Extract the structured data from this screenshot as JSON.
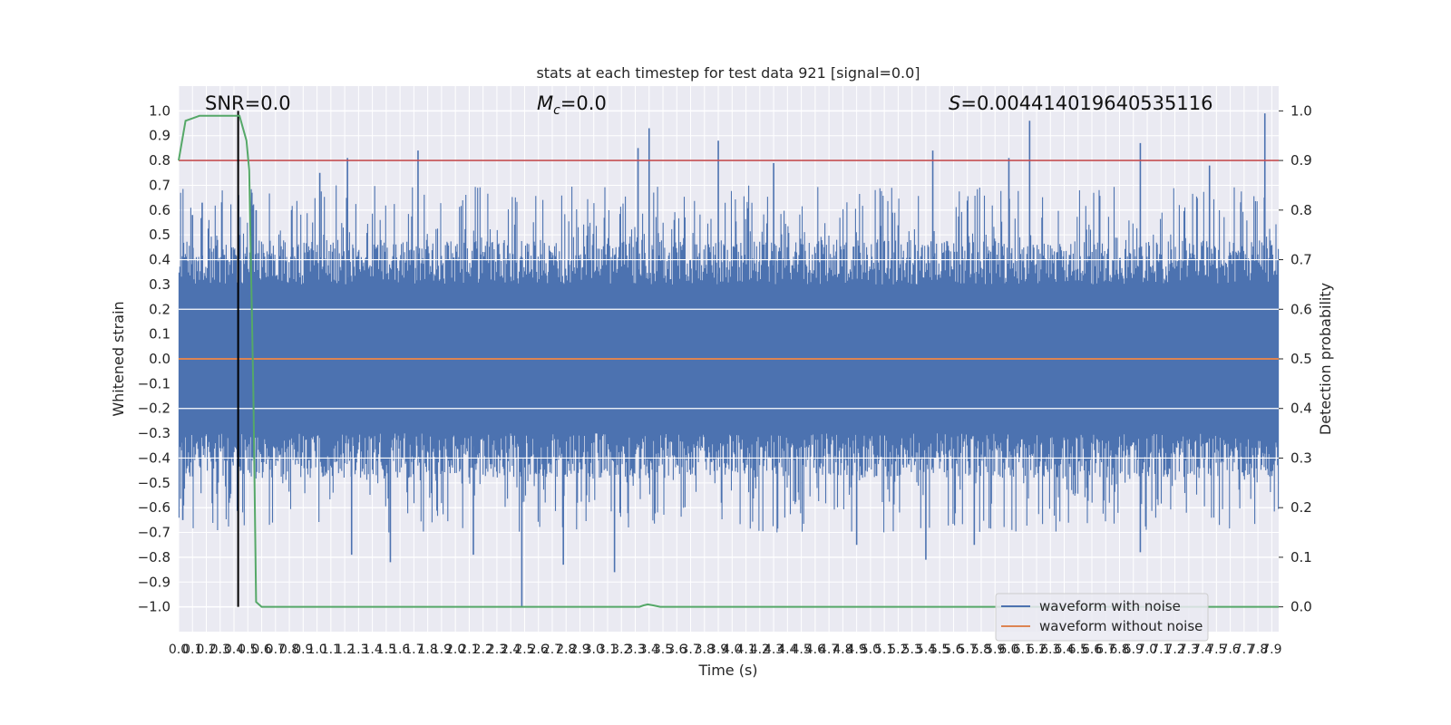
{
  "chart_data": {
    "type": "line",
    "title": "stats at each timestep for test data 921 [signal=0.0]",
    "xlabel": "Time (s)",
    "ylabel": "Whitened strain",
    "ylabel_right": "Detection probability",
    "xlim": [
      0.0,
      7.95
    ],
    "ylim": [
      -1.1,
      1.1
    ],
    "ylim_right": [
      -0.05,
      1.05
    ],
    "grid": true,
    "legend_position": "lower-right",
    "annotations": {
      "snr": "SNR=0.0",
      "mc_symbol": "M",
      "mc_sub": "c",
      "mc_value": "=0.0",
      "s_symbol": "S",
      "s_value": "=0.004414019640535116"
    },
    "threshold_line": {
      "y_right": 0.9,
      "color": "#c44e52"
    },
    "vertical_marker": {
      "x": 0.43,
      "color": "#000000"
    },
    "yticks": [
      "1.0",
      "0.9",
      "0.8",
      "0.7",
      "0.6",
      "0.5",
      "0.4",
      "0.3",
      "0.2",
      "0.1",
      "0.0",
      "−0.1",
      "−0.2",
      "−0.3",
      "−0.4",
      "−0.5",
      "−0.6",
      "−0.7",
      "−0.8",
      "−0.9",
      "−1.0"
    ],
    "yticks_right": [
      "1.0",
      "0.9",
      "0.8",
      "0.7",
      "0.6",
      "0.5",
      "0.4",
      "0.3",
      "0.2",
      "0.1",
      "0.0"
    ],
    "xticks": [
      "0.0",
      "0.1",
      "0.2",
      "0.3",
      "0.4",
      "0.5",
      "0.6",
      "0.7",
      "0.8",
      "0.9",
      "1.0",
      "1.1",
      "1.2",
      "1.3",
      "1.4",
      "1.5",
      "1.6",
      "1.7",
      "1.8",
      "1.9",
      "2.0",
      "2.1",
      "2.2",
      "2.3",
      "2.4",
      "2.5",
      "2.6",
      "2.7",
      "2.8",
      "2.9",
      "3.0",
      "3.1",
      "3.2",
      "3.3",
      "3.4",
      "3.5",
      "3.6",
      "3.7",
      "3.8",
      "3.9",
      "4.0",
      "4.1",
      "4.2",
      "4.3",
      "4.4",
      "4.5",
      "4.6",
      "4.7",
      "4.8",
      "4.9",
      "5.0",
      "5.1",
      "5.2",
      "5.3",
      "5.4",
      "5.5",
      "5.6",
      "5.7",
      "5.8",
      "5.9",
      "6.0",
      "6.1",
      "6.2",
      "6.3",
      "6.4",
      "6.5",
      "6.6",
      "6.7",
      "6.8",
      "6.9",
      "7.0",
      "7.1",
      "7.2",
      "7.3",
      "7.4",
      "7.5",
      "7.6",
      "7.7",
      "7.8",
      "7.9"
    ],
    "series": [
      {
        "name": "waveform with noise",
        "color": "#4c72b0",
        "axis": "left",
        "note_visible": "dense noise, envelope approx ±0.4 with peaks",
        "peaks": [
          {
            "x": 0.1,
            "y": 0.58
          },
          {
            "x": 0.17,
            "y": 0.63
          },
          {
            "x": 0.56,
            "y": 0.6
          },
          {
            "x": 1.02,
            "y": 0.75
          },
          {
            "x": 1.22,
            "y": 0.81
          },
          {
            "x": 1.73,
            "y": 0.84
          },
          {
            "x": 3.32,
            "y": 0.85
          },
          {
            "x": 3.4,
            "y": 0.93
          },
          {
            "x": 3.9,
            "y": 0.88
          },
          {
            "x": 4.3,
            "y": 0.79
          },
          {
            "x": 5.45,
            "y": 0.84
          },
          {
            "x": 6.0,
            "y": 0.81
          },
          {
            "x": 6.15,
            "y": 0.96
          },
          {
            "x": 6.95,
            "y": 0.87
          },
          {
            "x": 7.45,
            "y": 0.78
          },
          {
            "x": 7.85,
            "y": 0.99
          },
          {
            "x": 0.03,
            "y": -0.65
          },
          {
            "x": 1.25,
            "y": -0.79
          },
          {
            "x": 1.53,
            "y": -0.82
          },
          {
            "x": 2.13,
            "y": -0.79
          },
          {
            "x": 2.48,
            "y": -1.0
          },
          {
            "x": 2.78,
            "y": -0.83
          },
          {
            "x": 3.15,
            "y": -0.86
          },
          {
            "x": 4.9,
            "y": -0.75
          },
          {
            "x": 5.4,
            "y": -0.81
          },
          {
            "x": 5.75,
            "y": -0.75
          },
          {
            "x": 6.95,
            "y": -0.78
          }
        ]
      },
      {
        "name": "waveform without noise",
        "color": "#dd8452",
        "axis": "left",
        "x": [
          0.0,
          7.95
        ],
        "y": [
          0.0,
          0.0
        ]
      },
      {
        "color": "#55a868",
        "axis": "right",
        "x": [
          0.0,
          0.05,
          0.1,
          0.15,
          0.2,
          0.25,
          0.3,
          0.35,
          0.4,
          0.44,
          0.49,
          0.51,
          0.54,
          0.56,
          0.6,
          1.0,
          2.0,
          3.0,
          3.25,
          3.33,
          3.36,
          3.39,
          3.43,
          3.48,
          3.55,
          4.0,
          5.0,
          6.0,
          7.0,
          7.95
        ],
        "y": [
          0.9,
          0.98,
          0.985,
          0.99,
          0.99,
          0.99,
          0.99,
          0.99,
          0.99,
          0.99,
          0.94,
          0.88,
          0.43,
          0.01,
          0.0,
          0.0,
          0.0,
          0.0,
          0.0,
          0.0,
          0.003,
          0.005,
          0.003,
          0.0,
          0.0,
          0.0,
          0.0,
          0.0,
          0.0,
          0.0
        ]
      }
    ]
  }
}
